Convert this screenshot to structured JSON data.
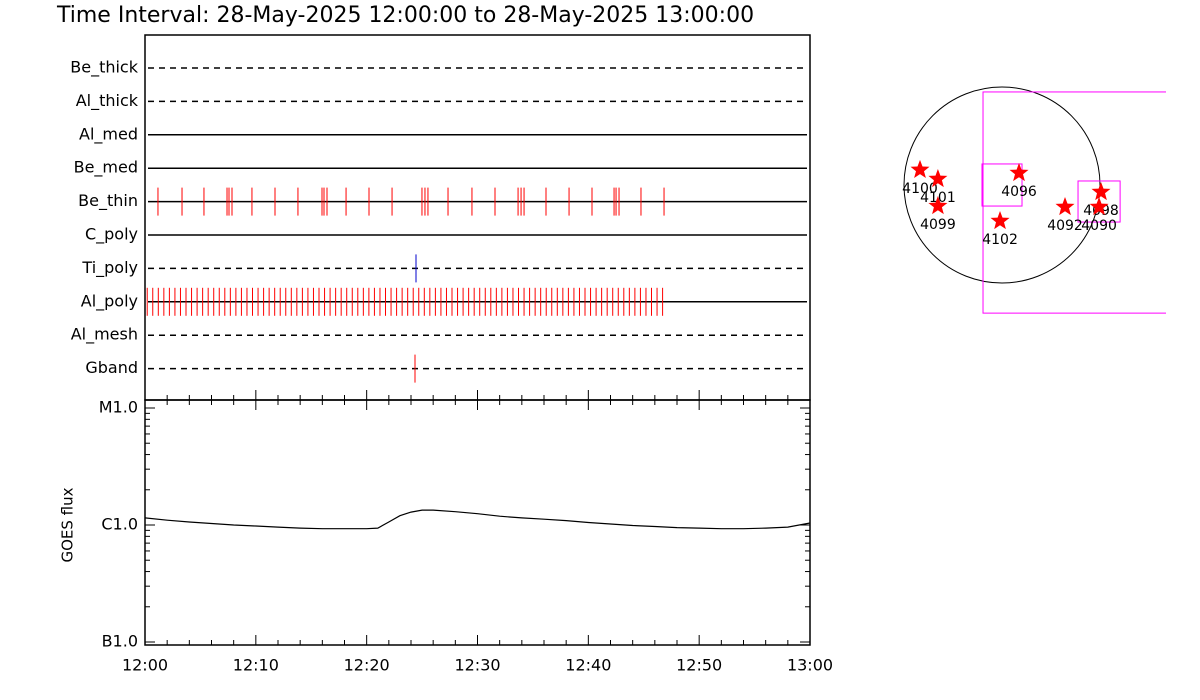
{
  "title": "Time Interval: 28-May-2025 12:00:00 to 28-May-2025 13:00:00",
  "chart_data": [
    {
      "type": "event",
      "rows": [
        {
          "name": "Be_thick",
          "style": "dashed",
          "color": "#ff0000",
          "times": []
        },
        {
          "name": "Al_thick",
          "style": "dashed",
          "color": "#ff0000",
          "times": []
        },
        {
          "name": "Al_med",
          "style": "solid",
          "color": "#ff0000",
          "times": []
        },
        {
          "name": "Be_med",
          "style": "solid",
          "color": "#ff0000",
          "times": []
        },
        {
          "name": "Be_thin",
          "style": "solid",
          "color": "#ff0000",
          "times": [
            1.17,
            3.34,
            5.32,
            7.4,
            7.58,
            7.85,
            9.65,
            11.73,
            13.8,
            15.97,
            16.15,
            16.42,
            18.14,
            20.21,
            22.29,
            24.99,
            25.26,
            25.53,
            27.34,
            29.5,
            31.58,
            33.66,
            33.93,
            34.2,
            36.18,
            38.26,
            40.33,
            42.32,
            42.5,
            42.77,
            44.75,
            46.83
          ]
        },
        {
          "name": "C_poly",
          "style": "solid",
          "color": "#ff0000",
          "times": []
        },
        {
          "name": "Ti_poly",
          "style": "dashed",
          "color": "#0000cc",
          "times": [
            24.45
          ]
        },
        {
          "name": "Al_poly",
          "style": "solid",
          "color": "#ff0000",
          "times": [
            0.2,
            0.7,
            1.2,
            1.7,
            2.2,
            2.7,
            3.2,
            3.7,
            4.2,
            4.7,
            5.2,
            5.7,
            6.2,
            6.7,
            7.2,
            7.7,
            8.2,
            8.7,
            9.2,
            9.7,
            10.2,
            10.7,
            11.2,
            11.7,
            12.2,
            12.7,
            13.2,
            13.7,
            14.2,
            14.7,
            15.2,
            15.7,
            16.2,
            16.7,
            17.2,
            17.7,
            18.2,
            18.7,
            19.2,
            19.7,
            20.2,
            20.7,
            21.2,
            21.7,
            22.2,
            22.7,
            23.2,
            23.7,
            24.2,
            24.7,
            25.2,
            25.7,
            26.2,
            26.7,
            27.2,
            27.7,
            28.2,
            28.7,
            29.2,
            29.7,
            30.2,
            30.7,
            31.2,
            31.7,
            32.2,
            32.7,
            33.2,
            33.7,
            34.2,
            34.7,
            35.2,
            35.7,
            36.2,
            36.7,
            37.2,
            37.7,
            38.2,
            38.7,
            39.2,
            39.7,
            40.2,
            40.7,
            41.2,
            41.7,
            42.2,
            42.7,
            43.2,
            43.7,
            44.2,
            44.7,
            45.2,
            45.7,
            46.2,
            46.7
          ]
        },
        {
          "name": "Al_mesh",
          "style": "dashed",
          "color": "#ff0000",
          "times": []
        },
        {
          "name": "Gband",
          "style": "dashed",
          "color": "#ff0000",
          "times": [
            24.36
          ]
        }
      ]
    },
    {
      "type": "line",
      "ylabel": "GOES flux",
      "log": true,
      "color": "#000000",
      "x": [
        0,
        2,
        4,
        6,
        8,
        10,
        12,
        14,
        16,
        18,
        20,
        21,
        22,
        23,
        24,
        25,
        26,
        28,
        30,
        32,
        34,
        36,
        38,
        40,
        42,
        44,
        46,
        48,
        50,
        52,
        54,
        56,
        58,
        60
      ],
      "values": [
        1.15e-06,
        1.1e-06,
        1.06e-06,
        1.03e-06,
        1e-06,
        9.8e-07,
        9.6e-07,
        9.4e-07,
        9.3e-07,
        9.3e-07,
        9.3e-07,
        9.4e-07,
        1.06e-06,
        1.2e-06,
        1.29e-06,
        1.34e-06,
        1.34e-06,
        1.3e-06,
        1.25e-06,
        1.19e-06,
        1.15e-06,
        1.12e-06,
        1.09e-06,
        1.05e-06,
        1.02e-06,
        9.9e-07,
        9.7e-07,
        9.5e-07,
        9.4e-07,
        9.3e-07,
        9.3e-07,
        9.4e-07,
        9.6e-07,
        1.04e-06
      ],
      "xlim": [
        0,
        60
      ],
      "xticks": [
        {
          "value": 0,
          "label": "12:00"
        },
        {
          "value": 10,
          "label": "12:10"
        },
        {
          "value": 20,
          "label": "12:20"
        },
        {
          "value": 30,
          "label": "12:30"
        },
        {
          "value": 40,
          "label": "12:40"
        },
        {
          "value": 50,
          "label": "12:50"
        },
        {
          "value": 60,
          "label": "13:00"
        }
      ],
      "xminor": [
        2,
        4,
        6,
        8,
        12,
        14,
        16,
        18,
        22,
        24,
        26,
        28,
        32,
        34,
        36,
        38,
        42,
        44,
        46,
        48,
        52,
        54,
        56,
        58
      ],
      "ylim": [
        1e-07,
        1e-05
      ],
      "yticks": [
        {
          "value": 1e-05,
          "label": "M1.0"
        },
        {
          "value": 1e-06,
          "label": "C1.0"
        },
        {
          "value": 1e-07,
          "label": "B1.0"
        }
      ],
      "yminor": [
        2e-07,
        3e-07,
        4e-07,
        5e-07,
        6e-07,
        7e-07,
        8e-07,
        9e-07,
        2e-06,
        3e-06,
        4e-06,
        5e-06,
        6e-06,
        7e-06,
        8e-06,
        9e-06
      ]
    },
    {
      "type": "disk",
      "radius": 950,
      "boxes": [
        {
          "x0": -184,
          "x1": 1700,
          "y0": -1242,
          "y1": 902,
          "color": "#ff00ff"
        },
        {
          "x0": -194,
          "x1": 194,
          "y0": -204,
          "y1": 204,
          "color": "#ff00ff"
        },
        {
          "x0": 737,
          "x1": 1145,
          "y0": -359,
          "y1": 39,
          "color": "#ff00ff"
        }
      ],
      "regions": [
        {
          "label": "4100",
          "x": -795,
          "y": 146
        },
        {
          "label": "4101",
          "x": -621,
          "y": 58
        },
        {
          "label": "4099",
          "x": -621,
          "y": -204
        },
        {
          "label": "4096",
          "x": 165,
          "y": 116
        },
        {
          "label": "4102",
          "x": -19,
          "y": -349
        },
        {
          "label": "4092",
          "x": 611,
          "y": -213
        },
        {
          "label": "4098",
          "x": 960,
          "y": -68
        },
        {
          "label": "4090",
          "x": 941,
          "y": -213
        }
      ],
      "star_color": "#ff0000"
    }
  ]
}
